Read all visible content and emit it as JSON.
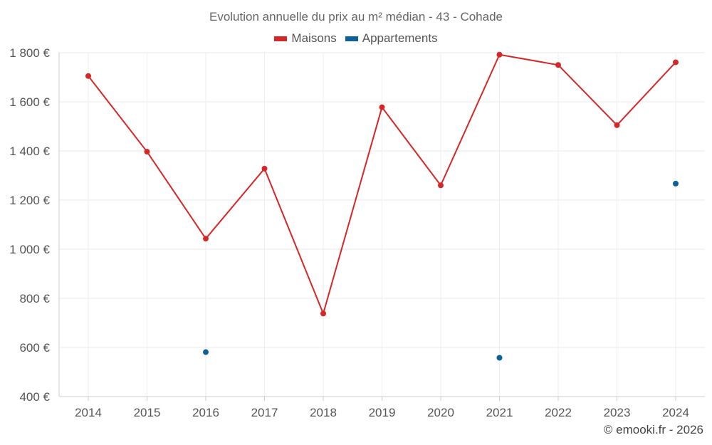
{
  "chart_data": {
    "type": "line",
    "title": "Evolution annuelle du prix au m² médian - 43 - Cohade",
    "x": [
      "2014",
      "2015",
      "2016",
      "2017",
      "2018",
      "2019",
      "2020",
      "2021",
      "2022",
      "2023",
      "2024"
    ],
    "y_ticks": [
      "1 800 €",
      "1 600 €",
      "1 400 €",
      "1 200 €",
      "1 000 €",
      "800 €",
      "600 €",
      "400 €"
    ],
    "ylim": [
      400,
      1800
    ],
    "grid": true,
    "legend_position": "top-center",
    "series": [
      {
        "name": "Maisons",
        "color": "#d62728",
        "values": [
          1705,
          1397,
          1043,
          1328,
          738,
          1578,
          1260,
          1792,
          1750,
          1505,
          1761
        ]
      },
      {
        "name": "Appartements",
        "color": "#0c6199",
        "values": [
          null,
          null,
          581,
          null,
          null,
          null,
          null,
          558,
          null,
          null,
          1267
        ]
      }
    ]
  },
  "credit": "© emooki.fr - 2026"
}
